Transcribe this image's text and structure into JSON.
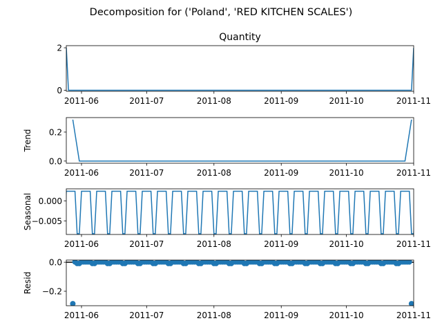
{
  "chart_data": {
    "type": "line",
    "suptitle": "Decomposition for ('Poland', 'RED KITCHEN SCALES')",
    "x_range": [
      "2011-05-25",
      "2011-11-01"
    ],
    "x_tick_labels": [
      "2011-06",
      "2011-07",
      "2011-08",
      "2011-09",
      "2011-10",
      "2011-11"
    ],
    "x_tick_dates": [
      "2011-06-01",
      "2011-07-01",
      "2011-08-01",
      "2011-09-01",
      "2011-10-01",
      "2011-11-01"
    ],
    "seasonal_period_days": 7,
    "panels": [
      {
        "title": "Quantity",
        "ylabel": "",
        "kind": "line",
        "ylim": [
          -0.05,
          2.1
        ],
        "yticks": [
          0,
          2
        ],
        "ytick_labels": [
          "0",
          "2"
        ],
        "points": [
          {
            "x": "2011-05-25",
            "y": 2
          },
          {
            "x": "2011-05-26",
            "y": 0
          },
          {
            "x": "2011-10-31",
            "y": 0
          },
          {
            "x": "2011-11-01",
            "y": 2
          }
        ]
      },
      {
        "title": "",
        "ylabel": "Trend",
        "kind": "line",
        "ylim": [
          -0.015,
          0.3
        ],
        "yticks": [
          0,
          0.2
        ],
        "ytick_labels": [
          "0.0",
          "0.2"
        ],
        "points": [
          {
            "x": "2011-05-28",
            "y": 0.286
          },
          {
            "x": "2011-05-31",
            "y": 0
          },
          {
            "x": "2011-10-28",
            "y": 0
          },
          {
            "x": "2011-10-31",
            "y": 0.286
          }
        ]
      },
      {
        "title": "",
        "ylabel": "Seasonal",
        "kind": "seasonal",
        "ylim": [
          -0.0084,
          0.003
        ],
        "yticks": [
          0,
          -0.005
        ],
        "ytick_labels": [
          "0.000",
          "−0.005"
        ],
        "weekly_pattern": [
          0.0024,
          0.0024,
          0.0024,
          0.0024,
          0.0024,
          -0.0082,
          -0.0082
        ]
      },
      {
        "title": "",
        "ylabel": "Resid",
        "kind": "scatter",
        "ylim": [
          -0.3,
          0.015
        ],
        "yticks": [
          0,
          -0.2
        ],
        "ytick_labels": [
          "0.0",
          "−0.2"
        ],
        "zero_line": true,
        "outliers": [
          {
            "x": "2011-05-28",
            "y": -0.286
          },
          {
            "x": "2011-10-31",
            "y": -0.286
          }
        ],
        "baseline_range": [
          "2011-05-29",
          "2011-10-30"
        ],
        "baseline_values": [
          0.0024,
          0.0024,
          0.0024,
          0.0024,
          0.0024,
          -0.0082,
          -0.0082
        ]
      }
    ],
    "line_color": "#1f77b4"
  }
}
